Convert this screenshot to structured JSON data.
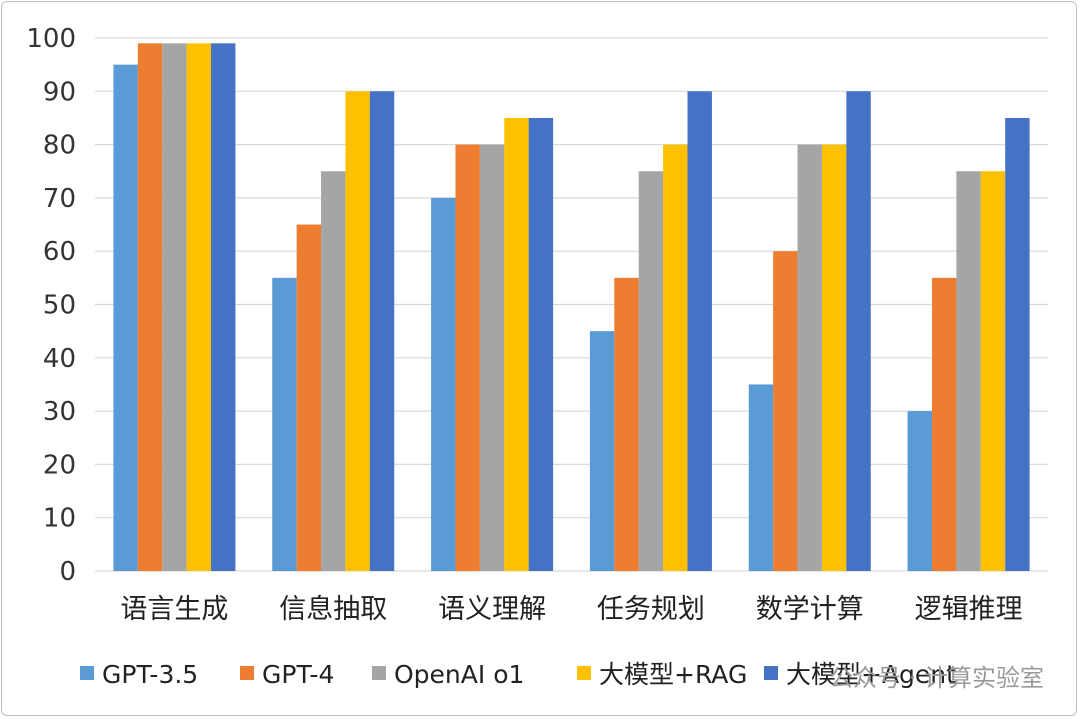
{
  "chart_data": {
    "type": "bar",
    "categories": [
      "语言生成",
      "信息抽取",
      "语义理解",
      "任务规划",
      "数学计算",
      "逻辑推理"
    ],
    "series": [
      {
        "name": "GPT-3.5",
        "color": "#5b9bd5",
        "values": [
          95,
          55,
          70,
          45,
          35,
          30
        ]
      },
      {
        "name": "GPT-4",
        "color": "#ed7d31",
        "values": [
          99,
          65,
          80,
          55,
          60,
          55
        ]
      },
      {
        "name": "OpenAI o1",
        "color": "#a5a5a5",
        "values": [
          99,
          75,
          80,
          75,
          80,
          75
        ]
      },
      {
        "name": "大模型+RAG",
        "color": "#ffc000",
        "values": [
          99,
          90,
          85,
          80,
          80,
          75
        ]
      },
      {
        "name": "大模型+Agent",
        "color": "#4472c4",
        "values": [
          99,
          90,
          85,
          90,
          90,
          85
        ]
      }
    ],
    "ylim": [
      0,
      100
    ],
    "yticks": [
      0,
      10,
      20,
      30,
      40,
      50,
      60,
      70,
      80,
      90,
      100
    ],
    "grid": true,
    "legend_position": "bottom"
  },
  "watermark": "公众号 · 计算实验室"
}
